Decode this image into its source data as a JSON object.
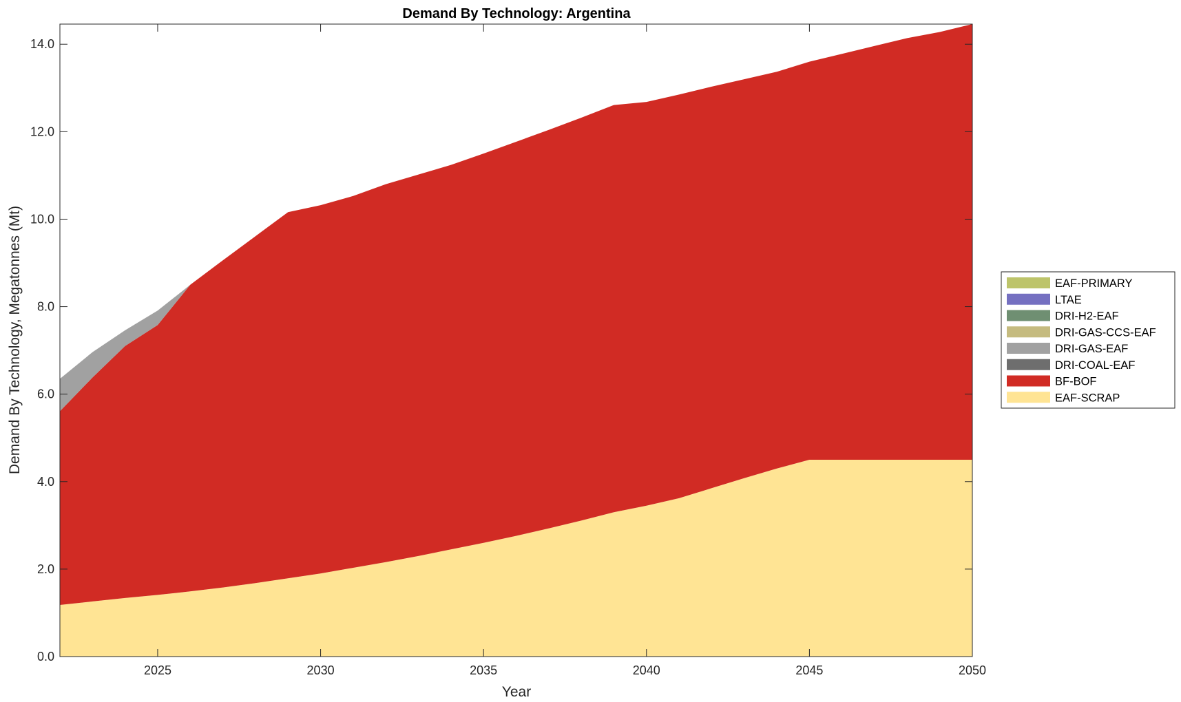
{
  "chart_data": {
    "type": "area",
    "stacked": true,
    "title": "Demand By Technology: Argentina",
    "xlabel": "Year",
    "ylabel": "Demand By Technology, Megatonnes (Mt)",
    "xlim": [
      2022,
      2050
    ],
    "ylim": [
      0,
      14.46
    ],
    "xticks": [
      2025,
      2030,
      2035,
      2040,
      2045,
      2050
    ],
    "yticks": [
      0,
      2,
      4,
      6,
      8,
      10,
      12,
      14
    ],
    "ytick_labels": [
      "0.0",
      "2.0",
      "4.0",
      "6.0",
      "8.0",
      "10.0",
      "12.0",
      "14.0"
    ],
    "grid": false,
    "legend_position": "right",
    "x": [
      2022,
      2023,
      2024,
      2025,
      2026,
      2027,
      2028,
      2029,
      2030,
      2031,
      2032,
      2033,
      2034,
      2035,
      2036,
      2037,
      2038,
      2039,
      2040,
      2041,
      2042,
      2043,
      2044,
      2045,
      2046,
      2047,
      2048,
      2049,
      2050
    ],
    "series": [
      {
        "name": "EAF-SCRAP",
        "color": "#FFE494",
        "values": [
          1.18,
          1.26,
          1.34,
          1.41,
          1.49,
          1.58,
          1.68,
          1.79,
          1.9,
          2.03,
          2.16,
          2.3,
          2.45,
          2.6,
          2.76,
          2.93,
          3.11,
          3.3,
          3.45,
          3.62,
          3.85,
          4.08,
          4.3,
          4.5,
          4.5,
          4.5,
          4.5,
          4.5,
          4.5
        ]
      },
      {
        "name": "BF-BOF",
        "color": "#D12B24",
        "values": [
          4.43,
          5.12,
          5.76,
          6.17,
          7.01,
          7.48,
          7.93,
          8.37,
          8.42,
          8.5,
          8.64,
          8.72,
          8.79,
          8.9,
          9.01,
          9.11,
          9.21,
          9.31,
          9.23,
          9.23,
          9.18,
          9.12,
          9.07,
          9.1,
          9.28,
          9.46,
          9.64,
          9.78,
          9.96
        ]
      },
      {
        "name": "DRI-COAL-EAF",
        "color": "#6E6E6E",
        "values": [
          0,
          0,
          0,
          0,
          0,
          0,
          0,
          0,
          0,
          0,
          0,
          0,
          0,
          0,
          0,
          0,
          0,
          0,
          0,
          0,
          0,
          0,
          0,
          0,
          0,
          0,
          0,
          0,
          0
        ]
      },
      {
        "name": "DRI-GAS-EAF",
        "color": "#A1A1A1",
        "values": [
          0.74,
          0.58,
          0.36,
          0.33,
          0,
          0,
          0,
          0,
          0,
          0,
          0,
          0,
          0,
          0,
          0,
          0,
          0,
          0,
          0,
          0,
          0,
          0,
          0,
          0,
          0,
          0,
          0,
          0,
          0
        ]
      },
      {
        "name": "DRI-GAS-CCS-EAF",
        "color": "#C5BB7F",
        "values": [
          0,
          0,
          0,
          0,
          0,
          0,
          0,
          0,
          0,
          0,
          0,
          0,
          0,
          0,
          0,
          0,
          0,
          0,
          0,
          0,
          0,
          0,
          0,
          0,
          0,
          0,
          0,
          0,
          0
        ]
      },
      {
        "name": "DRI-H2-EAF",
        "color": "#6F8F72",
        "values": [
          0,
          0,
          0,
          0,
          0,
          0,
          0,
          0,
          0,
          0,
          0,
          0,
          0,
          0,
          0,
          0,
          0,
          0,
          0,
          0,
          0,
          0,
          0,
          0,
          0,
          0,
          0,
          0,
          0
        ]
      },
      {
        "name": "LTAE",
        "color": "#7570C1",
        "values": [
          0,
          0,
          0,
          0,
          0,
          0,
          0,
          0,
          0,
          0,
          0,
          0,
          0,
          0,
          0,
          0,
          0,
          0,
          0,
          0,
          0,
          0,
          0,
          0,
          0,
          0,
          0,
          0,
          0
        ]
      },
      {
        "name": "EAF-PRIMARY",
        "color": "#BDC46A",
        "values": [
          0,
          0,
          0,
          0,
          0,
          0,
          0,
          0,
          0,
          0,
          0,
          0,
          0,
          0,
          0,
          0,
          0,
          0,
          0,
          0,
          0,
          0,
          0,
          0,
          0,
          0,
          0,
          0,
          0
        ]
      }
    ],
    "legend_order": [
      "EAF-PRIMARY",
      "LTAE",
      "DRI-H2-EAF",
      "DRI-GAS-CCS-EAF",
      "DRI-GAS-EAF",
      "DRI-COAL-EAF",
      "BF-BOF",
      "EAF-SCRAP"
    ]
  }
}
